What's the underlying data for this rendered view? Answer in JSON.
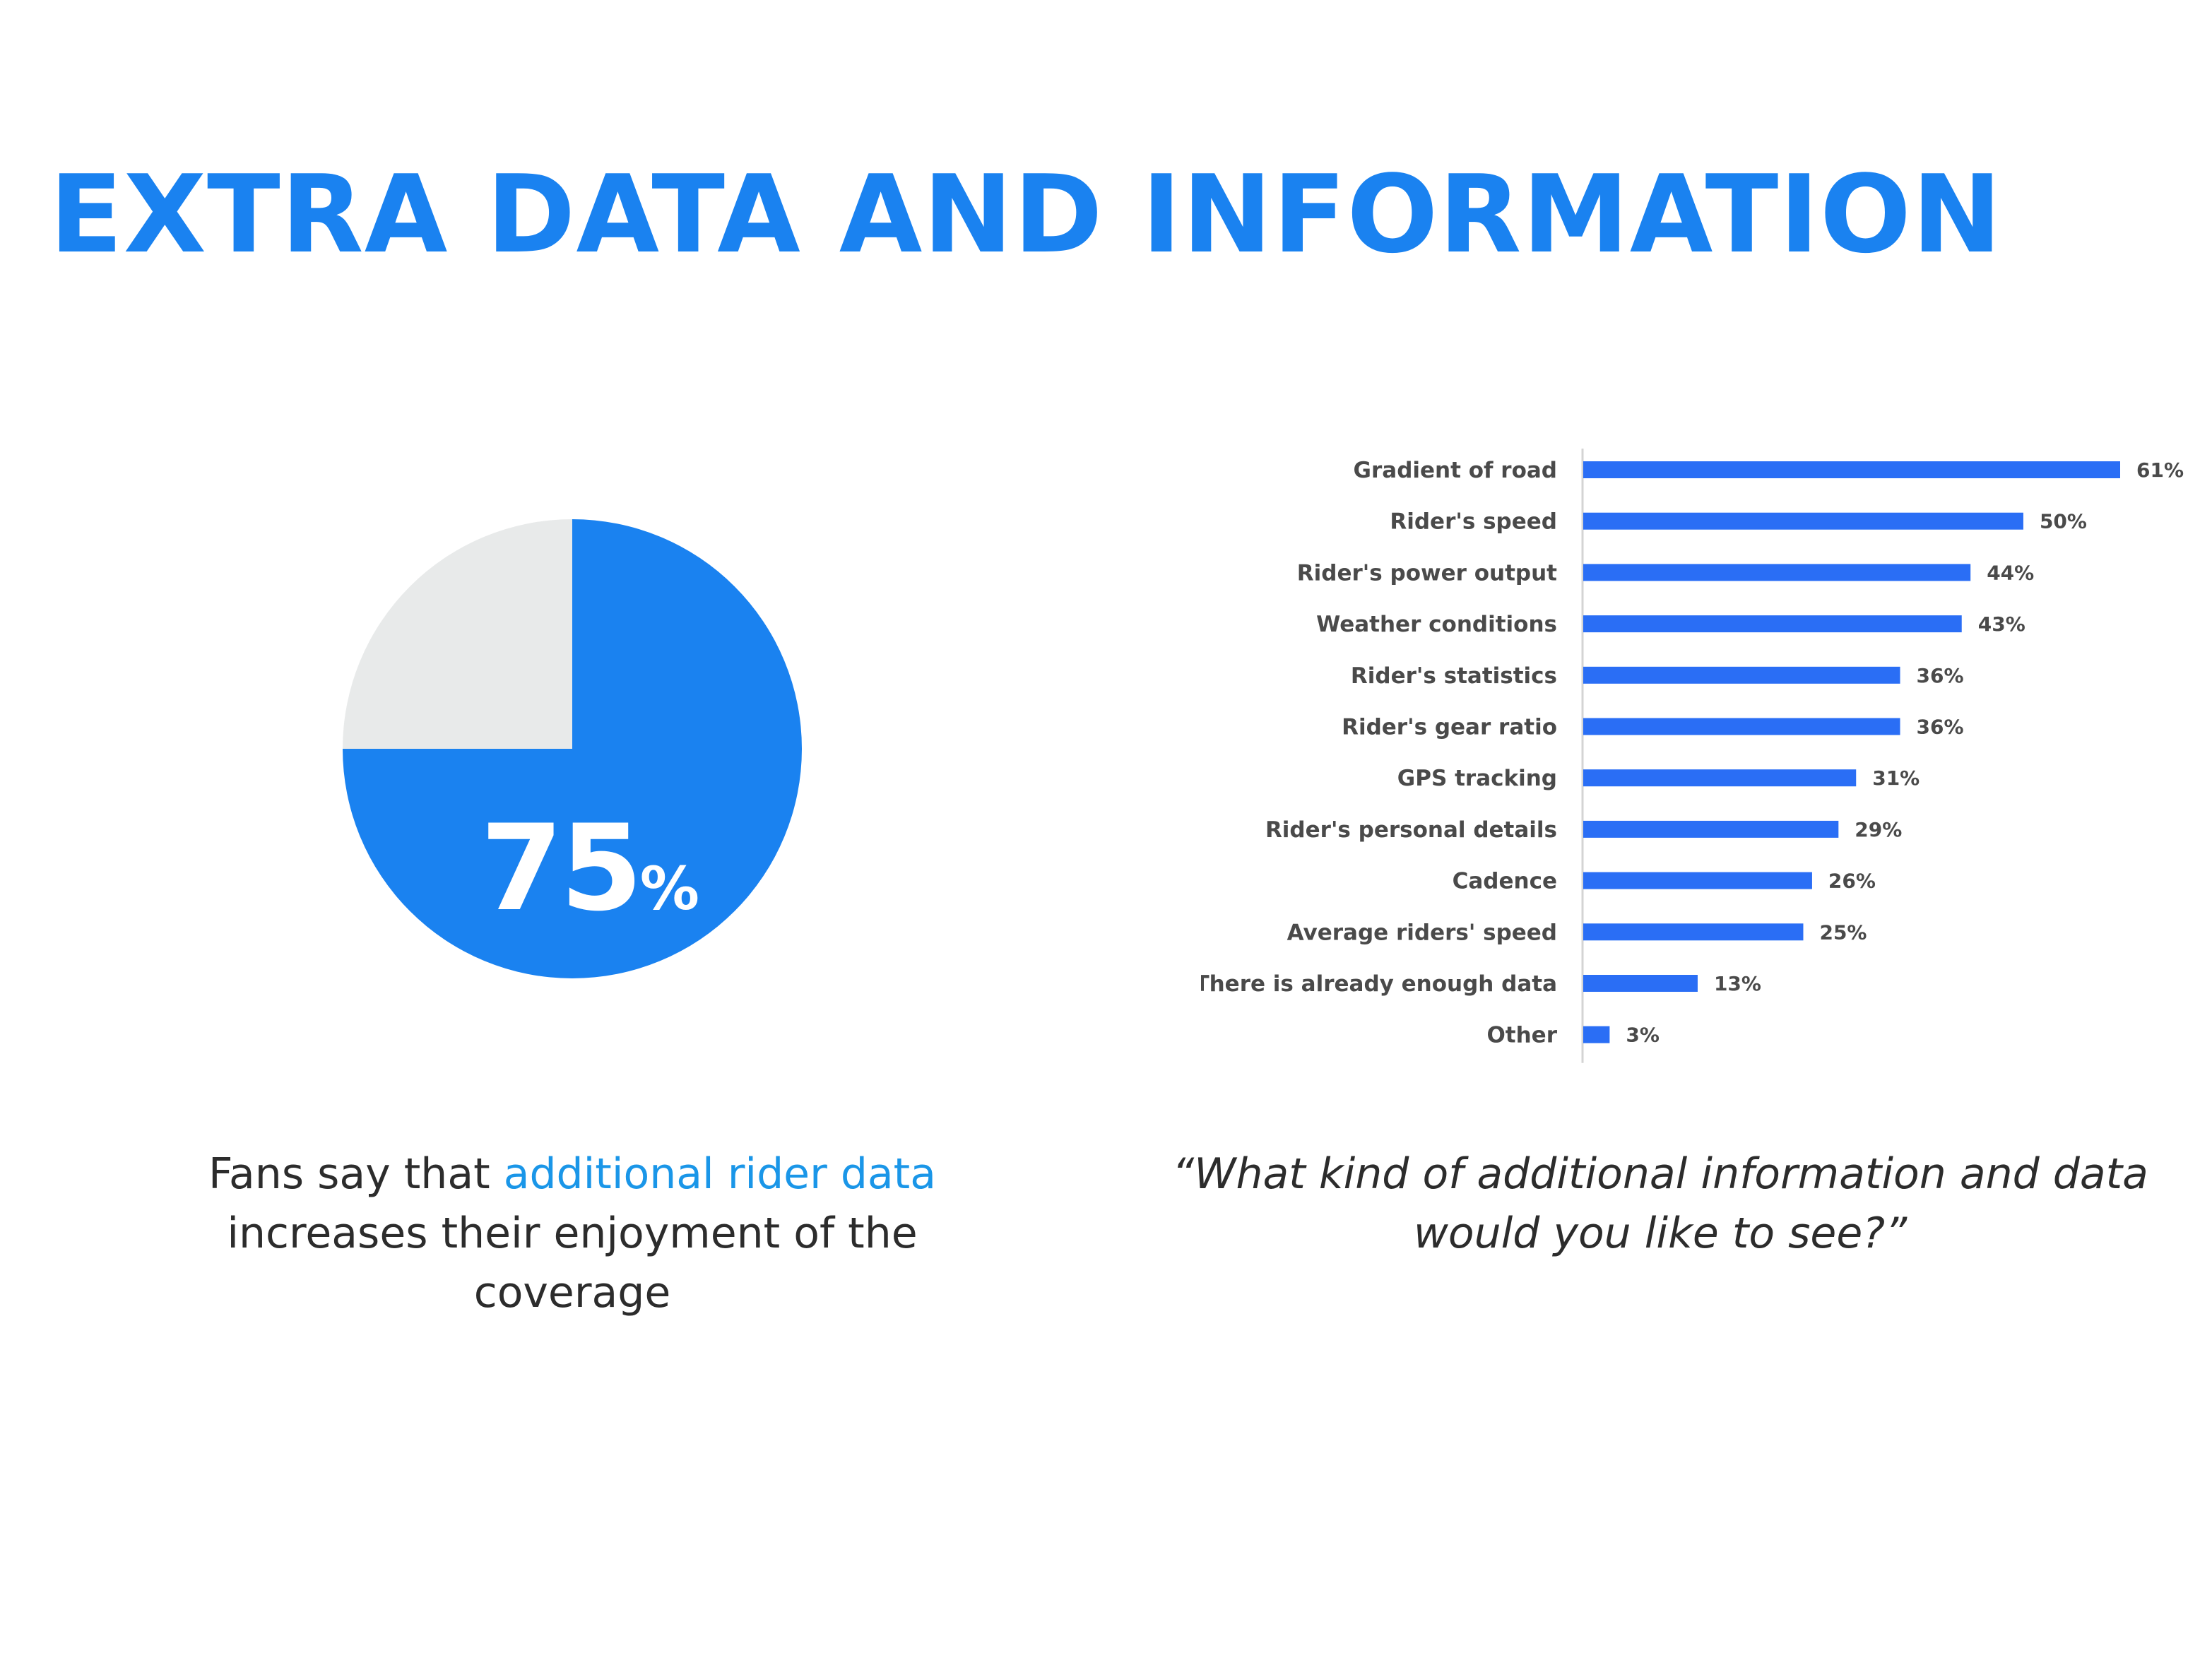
{
  "header": {
    "title": "EXTRA DATA AND INFORMATION"
  },
  "colors": {
    "title": "#1a82f0",
    "pie_main": "#1a82f0",
    "pie_rest": "#e8eaea",
    "bar": "#2a6ef5",
    "highlight_text": "#1a96e8",
    "body_text": "#2c2c2c"
  },
  "left_panel": {
    "pie_value": "75",
    "pie_unit": "%",
    "caption_before": "Fans say that ",
    "caption_highlight": "additional rider data",
    "caption_after": " increases their enjoyment of the coverage"
  },
  "right_panel": {
    "caption": "“What kind of additional information and data would you like to see?”"
  },
  "chart_data": [
    {
      "type": "pie",
      "slices": [
        {
          "label": "75%",
          "value": 75
        },
        {
          "label": "",
          "value": 25
        }
      ],
      "title": ""
    },
    {
      "type": "bar",
      "orientation": "horizontal",
      "categories": [
        "Gradient of road",
        "Rider's speed",
        "Rider's power output",
        "Weather conditions",
        "Rider's statistics",
        "Rider's gear ratio",
        "GPS tracking",
        "Rider's personal details",
        "Cadence",
        "Average riders' speed",
        "There is already enough data",
        "Other"
      ],
      "values": [
        61,
        50,
        44,
        43,
        36,
        36,
        31,
        29,
        26,
        25,
        13,
        3
      ],
      "value_labels": [
        "61%",
        "50%",
        "44%",
        "43%",
        "36%",
        "36%",
        "31%",
        "29%",
        "26%",
        "25%",
        "13%",
        "3%"
      ],
      "xlim": [
        0,
        61
      ],
      "title": "",
      "xlabel": "",
      "ylabel": "",
      "grid": false,
      "legend": "none"
    }
  ]
}
